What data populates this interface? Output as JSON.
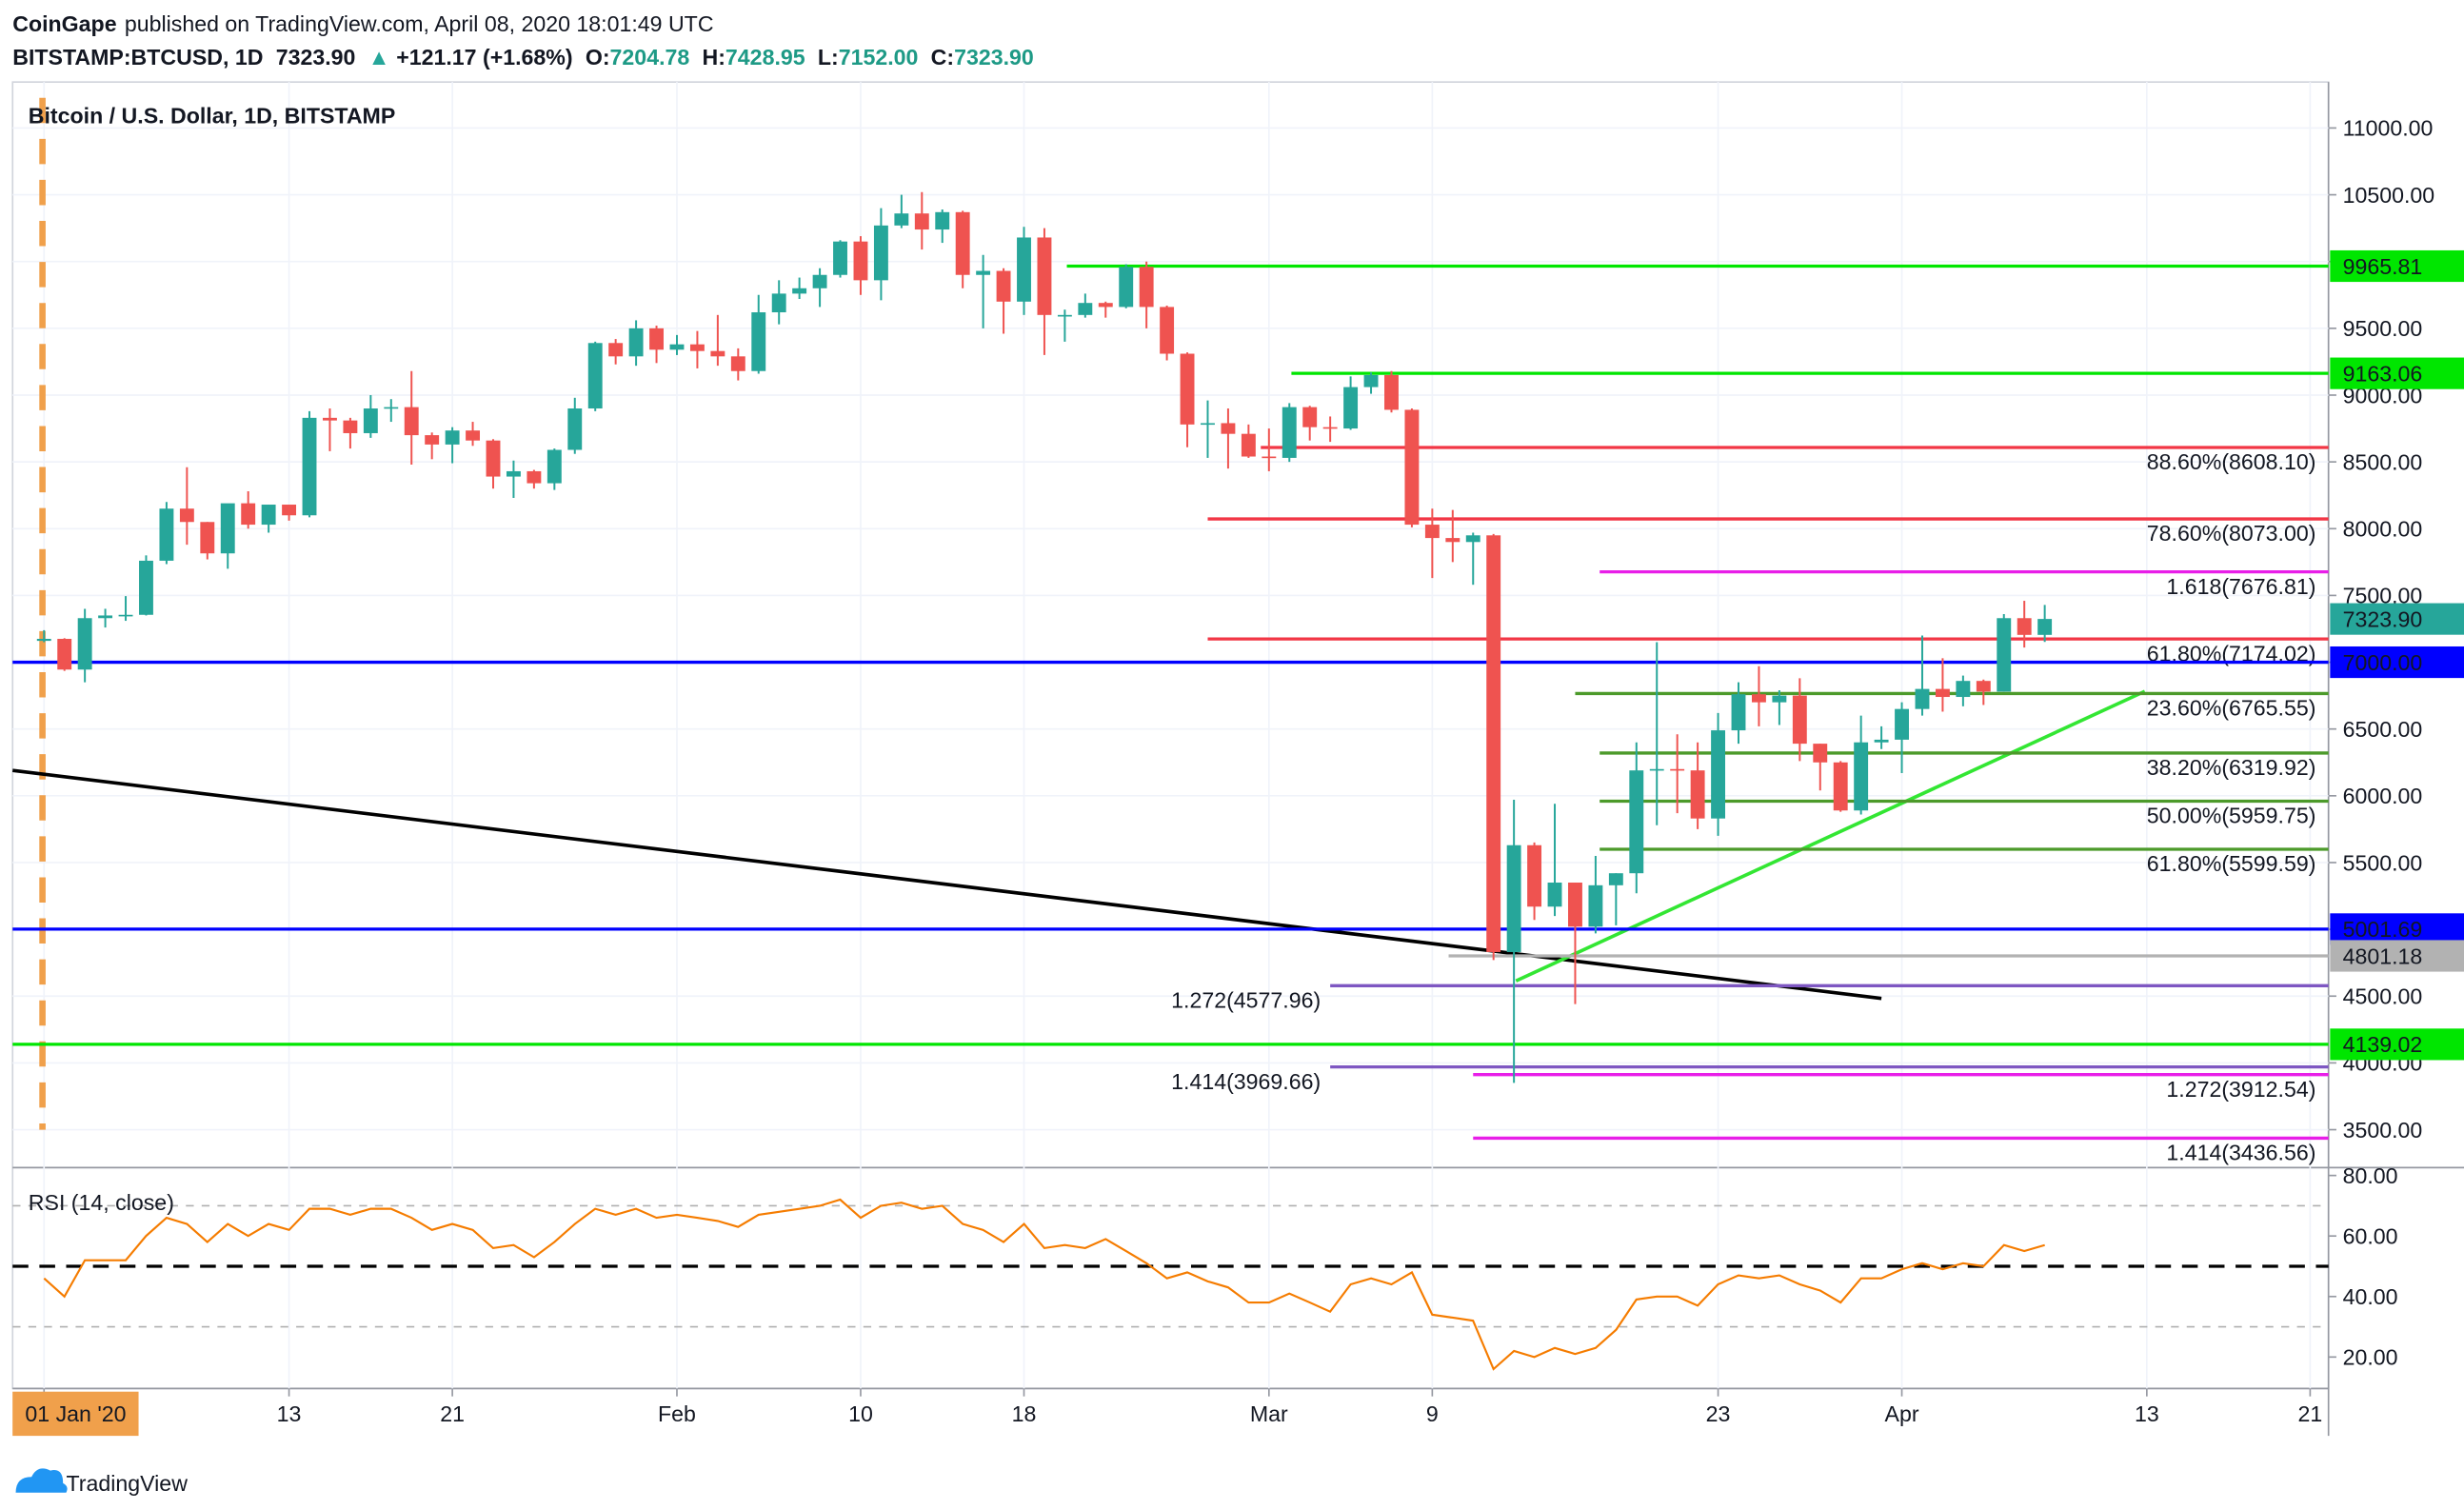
{
  "header": {
    "publisher": "CoinGape",
    "published": "published on TradingView.com, April 08, 2020 18:01:49 UTC",
    "symbol": "BITSTAMP:BTCUSD, 1D",
    "last": "7323.90",
    "arrow": "▲",
    "change": "+121.17 (+1.68%)",
    "ohlc": [
      {
        "key": "O:",
        "value": "7204.78"
      },
      {
        "key": "H:",
        "value": "7428.95"
      },
      {
        "key": "L:",
        "value": "7152.00"
      },
      {
        "key": "C:",
        "value": "7323.90"
      }
    ]
  },
  "chart_data": [
    {
      "type": "candlestick",
      "title": "Bitcoin / U.S. Dollar, 1D, BITSTAMP",
      "up_color": "#26a69a",
      "down_color": "#ef5350",
      "open": [
        7160,
        7175,
        6945,
        7330,
        7350,
        7355,
        7760,
        8150,
        8050,
        7815,
        8190,
        8030,
        8180,
        8100,
        8830,
        8810,
        8715,
        8900,
        8910,
        8700,
        8630,
        8735,
        8660,
        8390,
        8430,
        8340,
        8590,
        8900,
        9390,
        9290,
        9500,
        9340,
        9380,
        9330,
        9290,
        9180,
        9620,
        9760,
        9800,
        9900,
        10150,
        9860,
        10270,
        10360,
        10240,
        10370,
        9900,
        9930,
        9700,
        10180,
        9600,
        9600,
        9690,
        9660,
        9960,
        9660,
        9310,
        8780,
        8790,
        8710,
        8540,
        8530,
        8910,
        8760,
        8750,
        9060,
        9150,
        8890,
        8030,
        7930,
        7900,
        7950,
        4830,
        5630,
        5170,
        5350,
        5020,
        5330,
        5420,
        6190,
        6200,
        6190,
        5830,
        6490,
        6760,
        6700,
        6750,
        6390,
        6250,
        5890,
        6400,
        6420,
        6650,
        6800,
        6740,
        6860,
        6780,
        7330,
        7204.78
      ],
      "high": [
        7240,
        7180,
        7400,
        7400,
        7495,
        7800,
        8200,
        8460,
        8050,
        8180,
        8280,
        8180,
        8180,
        8880,
        8900,
        8830,
        9000,
        8970,
        9180,
        8720,
        8760,
        8800,
        8670,
        8510,
        8440,
        8600,
        8980,
        9400,
        9420,
        9560,
        9520,
        9450,
        9480,
        9600,
        9350,
        9750,
        9860,
        9880,
        9950,
        10160,
        10190,
        10400,
        10500,
        10520,
        10390,
        10380,
        10050,
        9950,
        10260,
        10250,
        9640,
        9760,
        9700,
        9980,
        10000,
        9670,
        9320,
        8960,
        8900,
        8780,
        8750,
        8940,
        8920,
        8840,
        9140,
        9170,
        9180,
        8900,
        8150,
        8140,
        7970,
        7960,
        5970,
        5650,
        5940,
        5350,
        5550,
        5420,
        6400,
        7150,
        6460,
        6400,
        6620,
        6850,
        6970,
        6790,
        6880,
        6390,
        6260,
        6600,
        6520,
        6700,
        7200,
        7030,
        6900,
        6870,
        7360,
        7460,
        7428.95
      ],
      "low": [
        7150,
        6935,
        6850,
        7260,
        7310,
        7350,
        7735,
        7880,
        7770,
        7700,
        8000,
        7970,
        8060,
        8085,
        8580,
        8600,
        8680,
        8800,
        8480,
        8520,
        8490,
        8620,
        8300,
        8230,
        8300,
        8290,
        8560,
        8880,
        9230,
        9220,
        9240,
        9300,
        9200,
        9220,
        9110,
        9160,
        9530,
        9720,
        9660,
        9880,
        9750,
        9710,
        10250,
        10090,
        10140,
        9800,
        9500,
        9460,
        9600,
        9300,
        9400,
        9580,
        9580,
        9650,
        9500,
        9260,
        8610,
        8530,
        8450,
        8530,
        8430,
        8500,
        8660,
        8650,
        8740,
        9010,
        8870,
        8010,
        7630,
        7750,
        7580,
        4770,
        3850,
        5070,
        5100,
        4440,
        4970,
        5030,
        5270,
        5780,
        5870,
        5750,
        5700,
        6390,
        6520,
        6530,
        6260,
        6040,
        5880,
        5860,
        6350,
        6170,
        6600,
        6630,
        6670,
        6680,
        6780,
        7110,
        7152
      ],
      "close": [
        7175,
        6945,
        7330,
        7350,
        7355,
        7760,
        8150,
        8050,
        7815,
        8190,
        8030,
        8180,
        8100,
        8830,
        8810,
        8715,
        8900,
        8910,
        8700,
        8630,
        8735,
        8660,
        8390,
        8430,
        8340,
        8590,
        8900,
        9390,
        9290,
        9500,
        9340,
        9380,
        9330,
        9290,
        9180,
        9620,
        9760,
        9800,
        9900,
        10150,
        9860,
        10270,
        10360,
        10240,
        10370,
        9900,
        9930,
        9700,
        10180,
        9600,
        9600,
        9690,
        9660,
        9960,
        9660,
        9310,
        8780,
        8790,
        8710,
        8540,
        8530,
        8910,
        8760,
        8750,
        9060,
        9150,
        8890,
        8030,
        7930,
        7900,
        7950,
        4830,
        5630,
        5170,
        5350,
        5020,
        5330,
        5420,
        6190,
        6200,
        6190,
        5830,
        6490,
        6760,
        6700,
        6750,
        6390,
        6250,
        5890,
        6400,
        6420,
        6650,
        6800,
        6740,
        6860,
        6780,
        7330,
        7204.78,
        7323.9
      ],
      "xlim": [
        -1.54,
        111.9
      ],
      "xticks": [
        {
          "value": 0,
          "label": "01 Jan '20"
        },
        {
          "value": 12,
          "label": "13"
        },
        {
          "value": 20,
          "label": "21"
        },
        {
          "value": 31,
          "label": "Feb"
        },
        {
          "value": 40,
          "label": "10"
        },
        {
          "value": 48,
          "label": "18"
        },
        {
          "value": 60,
          "label": "Mar"
        },
        {
          "value": 68,
          "label": "9"
        },
        {
          "value": 82,
          "label": "23"
        },
        {
          "value": 91,
          "label": "Apr"
        },
        {
          "value": 103,
          "label": "13"
        },
        {
          "value": 111,
          "label": "21"
        }
      ],
      "ylim": [
        3216,
        11344
      ],
      "yticks": [
        {
          "value": 3500,
          "label": "3500.00"
        },
        {
          "value": 4000,
          "label": "4000.00"
        },
        {
          "value": 4500,
          "label": "4500.00"
        },
        {
          "value": 5000,
          "label": "5000.00"
        },
        {
          "value": 5500,
          "label": "5500.00"
        },
        {
          "value": 6000,
          "label": "6000.00"
        },
        {
          "value": 6500,
          "label": "6500.00"
        },
        {
          "value": 7000,
          "label": "7000.00"
        },
        {
          "value": 7500,
          "label": "7500.00"
        },
        {
          "value": 8000,
          "label": "8000.00"
        },
        {
          "value": 8500,
          "label": "8500.00"
        },
        {
          "value": 9000,
          "label": "9000.00"
        },
        {
          "value": 9500,
          "label": "9500.00"
        },
        {
          "value": 10000,
          "label": "10000.00"
        },
        {
          "value": 10500,
          "label": "10500.00"
        },
        {
          "value": 11000,
          "label": "11000.00"
        }
      ],
      "grid": true,
      "levels": [
        {
          "value": 9965.81,
          "label": "9965.81",
          "color": "#00e600",
          "text_color": "#000000",
          "label_position": "axis",
          "start": 50.1
        },
        {
          "value": 9163.06,
          "label": "9163.06",
          "color": "#00e600",
          "text_color": "#000000",
          "label_position": "axis",
          "start": 61.1
        },
        {
          "value": 8608.1,
          "label": "88.60%(8608.10)",
          "color": "#f23645",
          "label_position": "right",
          "start": 59.6
        },
        {
          "value": 8073.0,
          "label": "78.60%(8073.00)",
          "color": "#f23645",
          "label_position": "right",
          "start": 57
        },
        {
          "value": 7676.81,
          "label": "1.618(7676.81)",
          "color": "#e81ee8",
          "label_position": "right",
          "start": 76.2
        },
        {
          "value": 7174.02,
          "label": "61.80%(7174.02)",
          "color": "#f23645",
          "label_position": "right",
          "start": 57
        },
        {
          "value": 7000.0,
          "label": "7000.00",
          "color": "#0000ff",
          "text_color": "#ffffff",
          "label_position": "axis"
        },
        {
          "value": 6765.55,
          "label": "23.60%(6765.55)",
          "color": "#4c9a2a",
          "label_position": "right",
          "start": 75
        },
        {
          "value": 6319.92,
          "label": "38.20%(6319.92)",
          "color": "#4c9a2a",
          "label_position": "right",
          "start": 76.2
        },
        {
          "value": 5959.75,
          "label": "50.00%(5959.75)",
          "color": "#4c9a2a",
          "label_position": "right",
          "start": 76.2
        },
        {
          "value": 5599.59,
          "label": "61.80%(5599.59)",
          "color": "#4c9a2a",
          "label_position": "right",
          "start": 76.2
        },
        {
          "value": 5001.69,
          "label": "5001.69",
          "color": "#0000ff",
          "text_color": "#ffffff",
          "label_position": "axis"
        },
        {
          "value": 4801.18,
          "label": "4801.18",
          "color": "#b2b2b2",
          "text_color": "#000000",
          "label_position": "axis",
          "start": 68.8
        },
        {
          "value": 4577.96,
          "label": "1.272(4577.96)",
          "color": "#7e57c2",
          "label_position": "left",
          "start": 63
        },
        {
          "value": 4139.02,
          "label": "4139.02",
          "color": "#00e600",
          "text_color": "#000000",
          "label_position": "axis"
        },
        {
          "value": 3969.66,
          "label": "1.414(3969.66)",
          "color": "#7e57c2",
          "label_position": "left",
          "start": 63
        },
        {
          "value": 3912.54,
          "label": "1.272(3912.54)",
          "color": "#e81ee8",
          "label_position": "right",
          "start": 70
        },
        {
          "value": 3436.56,
          "label": "1.414(3436.56)",
          "color": "#e81ee8",
          "label_position": "right",
          "start": 70
        }
      ],
      "trendlines": [
        {
          "color": "#000000",
          "points": [
            [
              -1.54,
              6190
            ],
            [
              90,
              4483
            ]
          ]
        },
        {
          "color": "#33e633",
          "points": [
            [
              72.1,
              4614
            ],
            [
              102.9,
              6782
            ]
          ]
        }
      ],
      "last_price": {
        "value": 7323.9,
        "label": "7323.90",
        "color": "#26a69a"
      }
    },
    {
      "type": "line",
      "title": "RSI (14, close)",
      "color": "#f57c00",
      "values": [
        46,
        40,
        52,
        52,
        52,
        60,
        66,
        64,
        58,
        64,
        60,
        64,
        62,
        69,
        69,
        67,
        69,
        69,
        66,
        62,
        64,
        62,
        56,
        57,
        53,
        58,
        64,
        69,
        67,
        69,
        66,
        67,
        66,
        65,
        63,
        67,
        68,
        69,
        70,
        72,
        66,
        70,
        71,
        69,
        70,
        64,
        62,
        58,
        64,
        56,
        57,
        56,
        59,
        55,
        51,
        46,
        48,
        45,
        43,
        38,
        38,
        41,
        38,
        35,
        44,
        46,
        44,
        48,
        34,
        33,
        32,
        16,
        22,
        20,
        23,
        21,
        23,
        29,
        39,
        40,
        40,
        37,
        44,
        47,
        46,
        47,
        44,
        42,
        38,
        46,
        46,
        49,
        51,
        49,
        51,
        50,
        57,
        55,
        57
      ],
      "xlim": [
        -1.54,
        111.9
      ],
      "ylim": [
        9.6,
        82.6
      ],
      "yticks": [
        {
          "value": 20,
          "label": "20.00"
        },
        {
          "value": 40,
          "label": "40.00"
        },
        {
          "value": 60,
          "label": "60.00"
        },
        {
          "value": 80,
          "label": "80.00"
        }
      ],
      "levels": [
        {
          "value": 70,
          "color": "#b0b0b0"
        },
        {
          "value": 50,
          "color": "#000000"
        },
        {
          "value": 30,
          "color": "#b0b0b0"
        }
      ]
    }
  ],
  "footer": {
    "brand": "TradingView"
  }
}
